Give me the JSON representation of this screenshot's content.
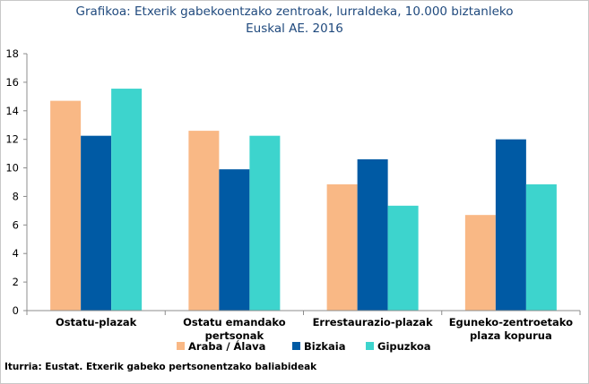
{
  "chart_data": {
    "type": "bar",
    "title": [
      "Grafikoa: Etxerik gabekoentzako zentroak, lurraldeka, 10.000 biztanleko",
      "Euskal AE. 2016"
    ],
    "categories": [
      [
        "Ostatu-plazak"
      ],
      [
        "Ostatu emandako",
        "pertsonak"
      ],
      [
        "Errestaurazio-plazak"
      ],
      [
        "Eguneko-zentroetako",
        "plaza kopurua"
      ]
    ],
    "series": [
      {
        "name": "Araba / Álava",
        "color": "#f9b885",
        "values": [
          14.7,
          12.6,
          8.85,
          6.7
        ]
      },
      {
        "name": "Bizkaia",
        "color": "#005aa4",
        "values": [
          12.25,
          9.9,
          10.6,
          12.0
        ]
      },
      {
        "name": "Gipuzkoa",
        "color": "#3dd4cd",
        "values": [
          15.55,
          12.25,
          7.35,
          8.85
        ]
      }
    ],
    "yticks": [
      0,
      2,
      4,
      6,
      8,
      10,
      12,
      14,
      16,
      18
    ],
    "ylim": [
      0,
      18
    ],
    "grid": false,
    "legend_position": "bottom",
    "source": "Iturria: Eustat. Etxerik gabeko pertsonentzako baliabideak"
  }
}
